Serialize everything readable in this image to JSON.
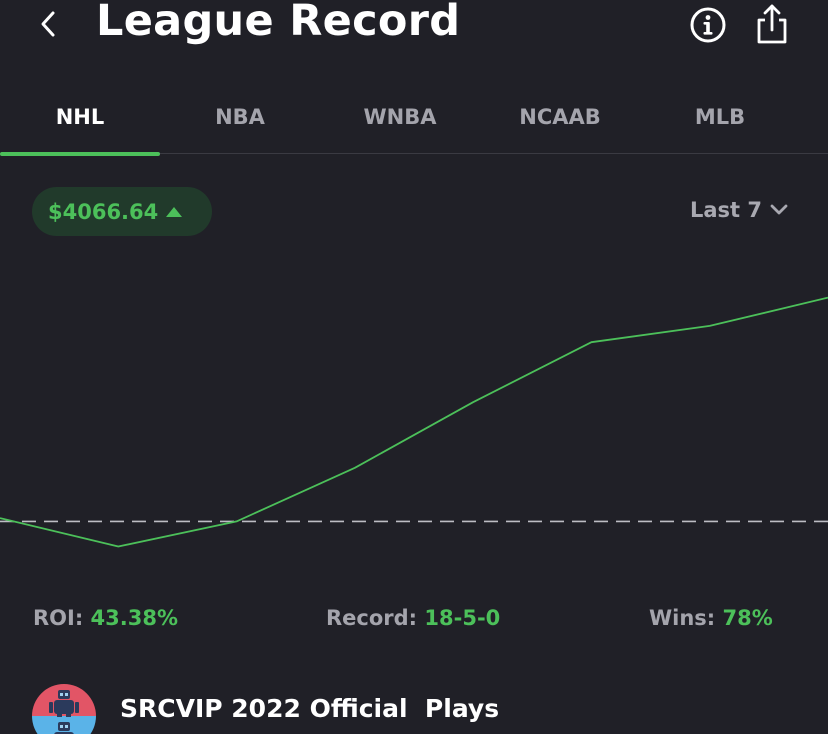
{
  "header": {
    "title": "League Record"
  },
  "tabs": [
    {
      "label": "NHL",
      "active": true
    },
    {
      "label": "NBA",
      "active": false
    },
    {
      "label": "WNBA",
      "active": false
    },
    {
      "label": "NCAAB",
      "active": false
    },
    {
      "label": "MLB",
      "active": false
    }
  ],
  "balance": {
    "value": "$4066.64",
    "trend": "up"
  },
  "range": {
    "selected": "Last 7"
  },
  "stats": {
    "roi_label": "ROI:",
    "roi_value": "43.38%",
    "record_label": "Record:",
    "record_value": "18-5-0",
    "wins_label": "Wins:",
    "wins_value": "78%"
  },
  "plays": {
    "title": "SRCVIP 2022 Official  Plays"
  },
  "colors": {
    "background": "#202027",
    "accent_green": "#4cc05a",
    "muted_text": "#a4a4ac",
    "pill_background": "#213a2b"
  },
  "icons": {
    "back": "chevron-left-icon",
    "info": "info-icon",
    "share": "share-icon",
    "trend": "triangle-up-icon",
    "range": "chevron-down-icon"
  },
  "chart_data": {
    "type": "line",
    "x": [
      0,
      1,
      2,
      3,
      4,
      5,
      6,
      7
    ],
    "values": [
      0.04,
      -0.31,
      0.0,
      0.66,
      1.47,
      2.21,
      2.41,
      2.76
    ],
    "baseline": 0,
    "ylim": [
      -0.6,
      3.1
    ],
    "grid": false,
    "baseline_dashed": true
  }
}
